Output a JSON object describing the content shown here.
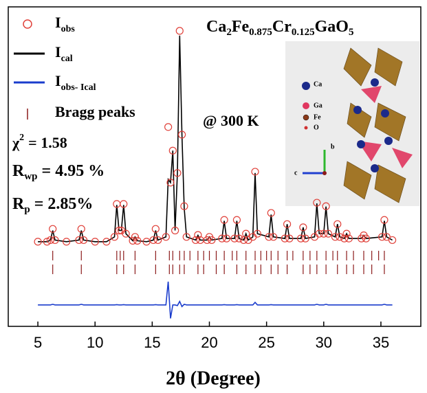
{
  "chart_data": {
    "type": "rietveld",
    "formula": [
      [
        "Ca",
        "2"
      ],
      [
        "Fe",
        "0.875"
      ],
      [
        "Cr",
        "0.125"
      ],
      [
        "GaO",
        "5"
      ]
    ],
    "temperature": "@ 300 K",
    "stats": {
      "chi": "χ",
      "chi_sup": "2",
      "chi_value": "= 1.58",
      "rwp": "R",
      "rwp_sub": "wp",
      "rwp_value": "= 4.95 %",
      "rp": "R",
      "rp_sub": "p",
      "rp_value": "= 2.85%"
    },
    "x_label": "2θ (Degree)",
    "xlim": [
      2.41,
      38.49
    ],
    "xticks": [
      5,
      10,
      15,
      20,
      25,
      30,
      35
    ],
    "ylim": [
      0,
      100
    ],
    "x": [
      5,
      5.8,
      6.1,
      6.3,
      6.5,
      7.5,
      8.6,
      8.8,
      9.0,
      10,
      11,
      11.7,
      11.9,
      12.1,
      12.3,
      12.5,
      12.7,
      13.3,
      13.5,
      13.7,
      14.5,
      15.1,
      15.3,
      15.5,
      16.2,
      16.4,
      16.6,
      16.8,
      17.0,
      17.2,
      17.4,
      17.6,
      17.8,
      18.0,
      18.8,
      19.0,
      19.2,
      19.8,
      20.0,
      20.2,
      21.1,
      21.3,
      21.5,
      22.2,
      22.4,
      22.6,
      23.0,
      23.2,
      23.4,
      23.8,
      24.0,
      24.2,
      25.2,
      25.4,
      25.6,
      26.6,
      26.8,
      27.0,
      28.0,
      28.2,
      28.4,
      29.2,
      29.4,
      29.6,
      30.0,
      30.2,
      30.4,
      31.0,
      31.2,
      31.4,
      31.8,
      32.0,
      32.2,
      33.3,
      33.5,
      33.7,
      35.1,
      35.3,
      35.5,
      36
    ],
    "series": [
      {
        "name": "I",
        "name_sub": "obs",
        "color": "#e0413a",
        "style": "circle",
        "values": [
          26.5,
          26.5,
          27,
          30.5,
          27,
          26.5,
          27,
          30.5,
          27,
          26.5,
          26.5,
          28,
          38.3,
          30,
          30,
          38.3,
          29,
          26.8,
          28,
          26.8,
          26.5,
          27,
          30.5,
          27,
          28,
          62.4,
          45,
          55,
          30,
          48,
          92.5,
          60,
          37.6,
          28,
          27,
          28.6,
          27,
          27,
          28,
          27,
          27.5,
          33.3,
          27.5,
          27.5,
          33.3,
          27.5,
          27,
          29,
          27,
          28,
          48.4,
          29,
          28,
          35.5,
          28,
          27.5,
          32,
          27.5,
          27.5,
          31,
          27.5,
          28,
          38.7,
          29,
          29,
          37.6,
          29,
          28,
          32,
          28,
          27.5,
          29,
          27.5,
          27.5,
          28.5,
          27.5,
          28,
          33.3,
          28,
          27
        ]
      },
      {
        "name": "I",
        "name_sub": "cal",
        "color": "#000000",
        "style": "line",
        "values": [
          26.5,
          26.5,
          27,
          30,
          27,
          26.5,
          27,
          30,
          27,
          26.5,
          26.5,
          28,
          38,
          30,
          30,
          38,
          29,
          26.8,
          28,
          26.8,
          26.5,
          27,
          30,
          27,
          28,
          46,
          45,
          55,
          30,
          48,
          91,
          60,
          37,
          28,
          27,
          28.5,
          27,
          27,
          28,
          27,
          27.5,
          33,
          27.5,
          27.5,
          33,
          27.5,
          27,
          29,
          27,
          28,
          48,
          29,
          28,
          35,
          28,
          27.5,
          32,
          27.5,
          27.5,
          31,
          27.5,
          28,
          38.5,
          29,
          29,
          37.5,
          29,
          28,
          32,
          28,
          27.5,
          29,
          27.5,
          27.5,
          28.5,
          27.5,
          28,
          33,
          28,
          27
        ]
      },
      {
        "name": "I",
        "name_sub": "obs- Ical",
        "color": "#1a3ccc",
        "style": "line",
        "values": [
          6.7,
          6.7,
          6.7,
          6.9,
          6.7,
          6.7,
          6.7,
          6.9,
          6.7,
          6.7,
          6.7,
          6.7,
          6.8,
          6.7,
          6.7,
          6.8,
          6.7,
          6.7,
          6.7,
          6.7,
          6.7,
          6.7,
          6.8,
          6.7,
          6.7,
          14,
          2.5,
          6.7,
          6.7,
          6.5,
          7.8,
          6.2,
          6.9,
          6.7,
          6.7,
          6.7,
          6.7,
          6.7,
          6.7,
          6.7,
          6.7,
          6.8,
          6.7,
          6.7,
          6.8,
          6.7,
          6.7,
          6.7,
          6.7,
          6.7,
          7.5,
          6.7,
          6.7,
          6.8,
          6.7,
          6.7,
          6.7,
          6.7,
          6.7,
          6.7,
          6.7,
          6.7,
          6.9,
          6.7,
          6.7,
          6.9,
          6.7,
          6.7,
          6.7,
          6.7,
          6.7,
          6.7,
          6.7,
          6.7,
          6.7,
          6.7,
          6.7,
          6.9,
          6.7,
          6.7
        ]
      }
    ],
    "bragg": {
      "name": "Bragg peaks",
      "color": "#8b1a1a",
      "rows": [
        [
          6.3,
          8.8,
          11.9,
          12.2,
          12.5,
          13.5,
          15.3,
          16.5,
          16.8,
          17.4,
          17.8,
          18.3,
          19.0,
          19.5,
          20.0,
          20.6,
          21.3,
          22.0,
          22.4,
          23.2,
          24.0,
          24.5,
          25.0,
          25.4,
          26.0,
          26.8,
          27.3,
          28.2,
          28.8,
          29.4,
          30.2,
          30.8,
          31.2,
          32.0,
          32.6,
          33.5,
          34.2,
          34.8,
          35.3
        ],
        [
          6.3,
          8.8,
          11.9,
          12.5,
          13.5,
          15.3,
          16.5,
          16.8,
          17.4,
          17.8,
          19.0,
          19.5,
          20.6,
          21.3,
          22.4,
          23.2,
          24.0,
          24.5,
          25.4,
          26.0,
          26.8,
          28.2,
          28.8,
          29.4,
          30.2,
          31.2,
          32.0,
          32.6,
          33.5,
          34.2,
          35.3
        ]
      ]
    },
    "inset": {
      "legend": [
        "Ca",
        "Ga",
        "Fe",
        "O"
      ],
      "axes": [
        "b",
        "c"
      ]
    }
  }
}
